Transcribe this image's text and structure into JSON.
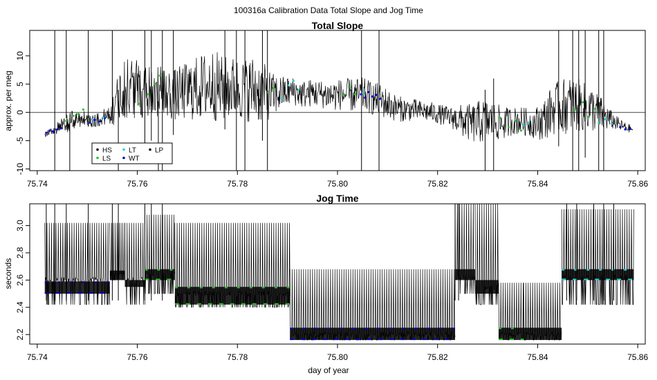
{
  "figure": {
    "title": "100316a   Calibration Data Total Slope and Jog Time",
    "xlabel": "day of year"
  },
  "colors": {
    "HS": "#000000",
    "LS": "#22c51f",
    "LT": "#1fd3d8",
    "WT": "#0000cc",
    "LP": "#000000",
    "trace": "#000000"
  },
  "chart_data": [
    {
      "type": "line",
      "title": "Total Slope",
      "xlabel": "",
      "ylabel": "approx. per meg",
      "xlim": [
        75.7385,
        75.8615
      ],
      "ylim": [
        -10.3,
        14.5
      ],
      "xticks": [
        "75.74",
        "75.76",
        "75.78",
        "75.80",
        "75.82",
        "75.84",
        "75.86"
      ],
      "yticks": [
        "-10",
        "-5",
        "0",
        "5",
        "10"
      ],
      "hline": 0,
      "legend": {
        "placement": "bottom-left",
        "entries": [
          "HS",
          "LT",
          "LP",
          "LS",
          "WT"
        ]
      },
      "series": [
        {
          "name": "trace",
          "x": [
            75.7415,
            75.743,
            75.745,
            75.747,
            75.749,
            75.751,
            75.753,
            75.755,
            75.757,
            75.759,
            75.761,
            75.763,
            75.765,
            75.767,
            75.769,
            75.771,
            75.773,
            75.775,
            75.777,
            75.779,
            75.781,
            75.783,
            75.785,
            75.787,
            75.789,
            75.791,
            75.793,
            75.795,
            75.797,
            75.799,
            75.801,
            75.803,
            75.805,
            75.807,
            75.809,
            75.811,
            75.813,
            75.815,
            75.817,
            75.819,
            75.821,
            75.823,
            75.825,
            75.827,
            75.829,
            75.831,
            75.833,
            75.835,
            75.837,
            75.839,
            75.841,
            75.843,
            75.845,
            75.847,
            75.849,
            75.851,
            75.853,
            75.855,
            75.857,
            75.859
          ],
          "y": [
            -3.8,
            -3.2,
            -2.5,
            -1.5,
            -1.0,
            -1.5,
            -1.2,
            0.5,
            4.0,
            4.5,
            4.0,
            4.2,
            3.5,
            3.0,
            3.5,
            4.0,
            4.5,
            5.0,
            4.0,
            4.5,
            4.0,
            4.2,
            3.5,
            3.0,
            3.5,
            3.8,
            3.2,
            3.5,
            3.2,
            3.0,
            3.2,
            3.0,
            3.2,
            2.5,
            2.0,
            1.0,
            0.5,
            0.5,
            0.2,
            0.0,
            -0.5,
            -1.0,
            -1.5,
            -2.0,
            -1.5,
            -1.5,
            -2.0,
            -1.5,
            -1.5,
            -2.0,
            -1.5,
            0.5,
            1.0,
            1.5,
            1.0,
            0.5,
            -0.5,
            -1.5,
            -2.5,
            -3.0
          ],
          "spread": [
            0.6,
            0.8,
            1.5,
            1.8,
            1.5,
            1.2,
            1.2,
            3.0,
            5.0,
            5.5,
            5.0,
            5.0,
            4.5,
            4.5,
            5.0,
            5.5,
            6.0,
            6.5,
            6.0,
            5.5,
            5.5,
            6.0,
            5.5,
            4.0,
            3.0,
            2.5,
            2.5,
            2.5,
            2.5,
            2.8,
            2.8,
            3.0,
            3.0,
            3.0,
            3.0,
            2.5,
            2.2,
            2.0,
            1.8,
            1.8,
            1.8,
            2.0,
            3.0,
            3.5,
            4.0,
            3.5,
            3.0,
            2.5,
            2.5,
            2.5,
            3.5,
            4.5,
            5.0,
            5.0,
            4.5,
            4.0,
            3.0,
            1.5,
            1.0,
            0.6
          ]
        },
        {
          "name": "WT",
          "x": [
            75.7418,
            75.7425,
            75.7432,
            75.744,
            75.7448,
            75.7505,
            75.7515,
            75.7525,
            75.7535,
            75.8047,
            75.8055,
            75.8062,
            75.807,
            75.8077,
            75.8085,
            75.8565,
            75.8575,
            75.8585
          ],
          "y": [
            -3.6,
            -3.2,
            -3.4,
            -3.0,
            -2.8,
            -1.8,
            -1.3,
            -1.6,
            -1.0,
            3.2,
            2.6,
            3.6,
            2.8,
            3.1,
            2.4,
            -2.6,
            -3.0,
            -2.9
          ]
        },
        {
          "name": "LS",
          "x": [
            75.7458,
            75.7472,
            75.7482,
            75.7492,
            75.7602,
            75.7622,
            75.7635,
            75.7645,
            75.7862,
            75.7872,
            75.8012,
            75.8025,
            75.8035,
            75.8325,
            75.8342,
            75.8355,
            75.8367,
            75.8475,
            75.849,
            75.8502,
            75.8515
          ],
          "y": [
            -1.5,
            -0.6,
            -0.3,
            0.5,
            1.5,
            3.2,
            5.0,
            6.5,
            3.5,
            4.3,
            3.0,
            4.5,
            3.2,
            -1.0,
            -2.6,
            -1.5,
            -3.2,
            0.5,
            1.8,
            -0.8,
            0.6
          ]
        },
        {
          "name": "LT",
          "x": [
            75.751,
            75.7532,
            75.7888,
            75.7902,
            75.7912,
            75.7922,
            75.8052,
            75.8372,
            75.8382,
            75.8522,
            75.8535,
            75.8548
          ],
          "y": [
            -1.2,
            -0.9,
            2.5,
            4.8,
            5.6,
            4.0,
            3.4,
            -2.3,
            -1.8,
            -1.8,
            -1.2,
            -2.0
          ]
        }
      ],
      "spikes": [
        {
          "x": 75.7435,
          "y0": -10.3,
          "y1": 14.5
        },
        {
          "x": 75.7458,
          "y0": -1.0,
          "y1": 14.5
        },
        {
          "x": 75.7465,
          "y0": -10.3,
          "y1": -1.0
        },
        {
          "x": 75.7502,
          "y0": -1.0,
          "y1": 14.5
        },
        {
          "x": 75.755,
          "y0": -2.0,
          "y1": 14.5
        },
        {
          "x": 75.7562,
          "y0": -10.3,
          "y1": 4.0
        },
        {
          "x": 75.7615,
          "y0": -6.0,
          "y1": 14.5
        },
        {
          "x": 75.7628,
          "y0": -5.0,
          "y1": 14.5
        },
        {
          "x": 75.7642,
          "y0": -10.3,
          "y1": 2.0
        },
        {
          "x": 75.765,
          "y0": -10.3,
          "y1": 14.5
        },
        {
          "x": 75.7672,
          "y0": -4.0,
          "y1": 14.5
        },
        {
          "x": 75.7775,
          "y0": -3.0,
          "y1": 14.5
        },
        {
          "x": 75.7798,
          "y0": -10.3,
          "y1": 14.5
        },
        {
          "x": 75.7815,
          "y0": -10.3,
          "y1": 14.5
        },
        {
          "x": 75.785,
          "y0": -5.0,
          "y1": 14.5
        },
        {
          "x": 75.786,
          "y0": -10.3,
          "y1": 14.5
        },
        {
          "x": 75.8048,
          "y0": -10.3,
          "y1": 14.5
        },
        {
          "x": 75.8083,
          "y0": -10.3,
          "y1": 14.5
        },
        {
          "x": 75.8295,
          "y0": -10.3,
          "y1": 4.0
        },
        {
          "x": 75.8312,
          "y0": -10.3,
          "y1": 6.0
        },
        {
          "x": 75.8442,
          "y0": -6.0,
          "y1": 14.5
        },
        {
          "x": 75.847,
          "y0": -10.3,
          "y1": 14.5
        },
        {
          "x": 75.8482,
          "y0": -10.3,
          "y1": 14.5
        },
        {
          "x": 75.8495,
          "y0": -8.0,
          "y1": 14.5
        },
        {
          "x": 75.8522,
          "y0": -10.3,
          "y1": 14.5
        },
        {
          "x": 75.8532,
          "y0": -10.3,
          "y1": 14.5
        }
      ]
    },
    {
      "type": "line",
      "title": "Jog Time",
      "xlabel": "day of year",
      "ylabel": "seconds",
      "xlim": [
        75.7385,
        75.8615
      ],
      "ylim": [
        2.13,
        3.16
      ],
      "xticks": [
        "75.74",
        "75.76",
        "75.78",
        "75.80",
        "75.82",
        "75.84",
        "75.86"
      ],
      "yticks": [
        "2.2",
        "2.4",
        "2.6",
        "2.8",
        "3.0"
      ],
      "segments": [
        {
          "x0": 75.7415,
          "x1": 75.7545,
          "low": 2.42,
          "mid": 2.6,
          "high": 3.02,
          "band": [
            2.5,
            2.59
          ],
          "color": "#0000cc"
        },
        {
          "x0": 75.7545,
          "x1": 75.7575,
          "low": 2.6,
          "mid": 2.65,
          "high": 3.02,
          "band": [
            2.6,
            2.67
          ],
          "color": "#000000"
        },
        {
          "x0": 75.7575,
          "x1": 75.7615,
          "low": 2.42,
          "mid": 2.6,
          "high": 3.02,
          "band": [
            2.55,
            2.6
          ],
          "color": "#000000"
        },
        {
          "x0": 75.7615,
          "x1": 75.7675,
          "low": 2.5,
          "mid": 2.65,
          "high": 3.08,
          "band": [
            2.6,
            2.68
          ],
          "color": "#22c51f"
        },
        {
          "x0": 75.7675,
          "x1": 75.7905,
          "low": 2.4,
          "mid": 2.5,
          "high": 3.02,
          "band": [
            2.42,
            2.55
          ],
          "color": "#22c51f"
        },
        {
          "x0": 75.7905,
          "x1": 75.8235,
          "low": 2.16,
          "mid": 2.2,
          "high": 2.68,
          "band": [
            2.16,
            2.25
          ],
          "color": "#0000cc"
        },
        {
          "x0": 75.8235,
          "x1": 75.8275,
          "low": 2.5,
          "mid": 2.62,
          "high": 3.16,
          "band": [
            2.6,
            2.68
          ],
          "color": "#000000"
        },
        {
          "x0": 75.8275,
          "x1": 75.8322,
          "low": 2.42,
          "mid": 2.55,
          "high": 3.16,
          "band": [
            2.5,
            2.6
          ],
          "color": "#000000"
        },
        {
          "x0": 75.8322,
          "x1": 75.8372,
          "low": 2.16,
          "mid": 2.2,
          "high": 2.58,
          "band": [
            2.16,
            2.25
          ],
          "color": "#22c51f"
        },
        {
          "x0": 75.8372,
          "x1": 75.8448,
          "low": 2.16,
          "mid": 2.2,
          "high": 2.58,
          "band": [
            2.16,
            2.25
          ],
          "color": "#000000"
        },
        {
          "x0": 75.8448,
          "x1": 75.8592,
          "low": 2.42,
          "mid": 2.62,
          "high": 3.12,
          "band": [
            2.6,
            2.68
          ],
          "color": "#1fd3d8"
        }
      ],
      "tall_spikes": [
        75.7418,
        75.7435,
        75.7458,
        75.7502,
        75.755,
        75.7562,
        75.7615,
        75.7628,
        75.765,
        75.8235,
        75.8242,
        75.8458,
        75.8478,
        75.8512,
        75.8532,
        75.8552
      ]
    }
  ]
}
